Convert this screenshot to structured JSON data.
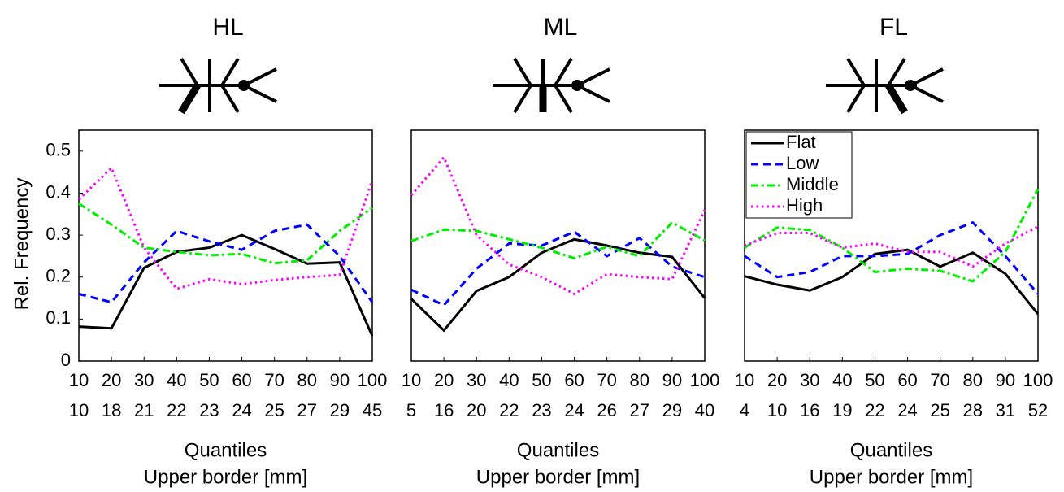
{
  "chart_data": [
    {
      "type": "line",
      "title": "HL",
      "xlabel": "Quantiles",
      "xlabel2": "Upper border [mm]",
      "ylabel": "Rel. Frequency",
      "x": [
        10,
        20,
        30,
        40,
        50,
        60,
        70,
        80,
        90,
        100
      ],
      "xlim": [
        10,
        100
      ],
      "xticks": [
        10,
        20,
        30,
        40,
        50,
        60,
        70,
        80,
        90,
        100
      ],
      "xticklabels2": [
        10,
        18,
        21,
        22,
        23,
        24,
        25,
        27,
        29,
        45
      ],
      "ylim": [
        0,
        0.55
      ],
      "yticks": [
        0,
        0.1,
        0.2,
        0.3,
        0.4,
        0.5
      ],
      "series": [
        {
          "name": "Flat",
          "color": "#000000",
          "linestyle": "solid",
          "values": [
            0.082,
            0.078,
            0.222,
            0.26,
            0.27,
            0.3,
            0.267,
            0.232,
            0.235,
            0.06
          ]
        },
        {
          "name": "Low",
          "color": "#0000ff",
          "linestyle": "dashed",
          "values": [
            0.16,
            0.14,
            0.235,
            0.31,
            0.285,
            0.265,
            0.31,
            0.325,
            0.25,
            0.14
          ]
        },
        {
          "name": "Middle",
          "color": "#00ee00",
          "linestyle": "dashdot",
          "values": [
            0.375,
            0.325,
            0.27,
            0.26,
            0.252,
            0.255,
            0.233,
            0.24,
            0.31,
            0.365
          ]
        },
        {
          "name": "High",
          "color": "#ff00ff",
          "linestyle": "dotted",
          "values": [
            0.385,
            0.46,
            0.27,
            0.172,
            0.195,
            0.183,
            0.193,
            0.2,
            0.205,
            0.43
          ]
        }
      ]
    },
    {
      "type": "line",
      "title": "ML",
      "xlabel": "Quantiles",
      "xlabel2": "Upper border [mm]",
      "x": [
        10,
        20,
        30,
        40,
        50,
        60,
        70,
        80,
        90,
        100
      ],
      "xlim": [
        10,
        100
      ],
      "xticks": [
        10,
        20,
        30,
        40,
        50,
        60,
        70,
        80,
        90,
        100
      ],
      "xticklabels2": [
        5,
        16,
        20,
        22,
        23,
        24,
        26,
        27,
        29,
        40
      ],
      "ylim": [
        0,
        0.55
      ],
      "series": [
        {
          "name": "Flat",
          "color": "#000000",
          "linestyle": "solid",
          "values": [
            0.148,
            0.073,
            0.167,
            0.2,
            0.258,
            0.29,
            0.275,
            0.258,
            0.248,
            0.15
          ]
        },
        {
          "name": "Low",
          "color": "#0000ff",
          "linestyle": "dashed",
          "values": [
            0.17,
            0.133,
            0.22,
            0.28,
            0.275,
            0.308,
            0.25,
            0.293,
            0.225,
            0.2
          ]
        },
        {
          "name": "Middle",
          "color": "#00ee00",
          "linestyle": "dashdot",
          "values": [
            0.286,
            0.313,
            0.31,
            0.29,
            0.27,
            0.245,
            0.272,
            0.25,
            0.33,
            0.287
          ]
        },
        {
          "name": "High",
          "color": "#ff00ff",
          "linestyle": "dotted",
          "values": [
            0.395,
            0.485,
            0.3,
            0.23,
            0.2,
            0.16,
            0.207,
            0.2,
            0.195,
            0.36
          ]
        }
      ]
    },
    {
      "type": "line",
      "title": "FL",
      "xlabel": "Quantiles",
      "xlabel2": "Upper border [mm]",
      "legend": "upper left",
      "x": [
        10,
        20,
        30,
        40,
        50,
        60,
        70,
        80,
        90,
        100
      ],
      "xlim": [
        10,
        100
      ],
      "xticks": [
        10,
        20,
        30,
        40,
        50,
        60,
        70,
        80,
        90,
        100
      ],
      "xticklabels2": [
        4,
        10,
        16,
        19,
        22,
        24,
        25,
        28,
        31,
        52
      ],
      "ylim": [
        0,
        0.55
      ],
      "series": [
        {
          "name": "Flat",
          "color": "#000000",
          "linestyle": "solid",
          "values": [
            0.202,
            0.182,
            0.168,
            0.2,
            0.255,
            0.265,
            0.225,
            0.258,
            0.208,
            0.112
          ]
        },
        {
          "name": "Low",
          "color": "#0000ff",
          "linestyle": "dashed",
          "values": [
            0.25,
            0.2,
            0.212,
            0.25,
            0.25,
            0.255,
            0.3,
            0.33,
            0.25,
            0.16
          ]
        },
        {
          "name": "Middle",
          "color": "#00ee00",
          "linestyle": "dashdot",
          "values": [
            0.27,
            0.318,
            0.312,
            0.27,
            0.212,
            0.22,
            0.215,
            0.19,
            0.26,
            0.41
          ]
        },
        {
          "name": "High",
          "color": "#ff00ff",
          "linestyle": "dotted",
          "values": [
            0.275,
            0.305,
            0.305,
            0.27,
            0.28,
            0.26,
            0.26,
            0.225,
            0.28,
            0.32
          ]
        }
      ]
    }
  ]
}
